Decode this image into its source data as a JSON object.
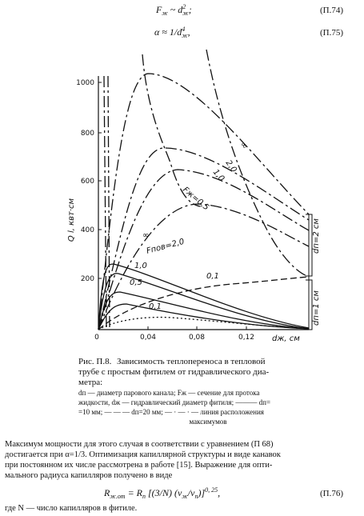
{
  "formulas": [
    {
      "parts": [
        "F",
        "ж",
        " ~ d",
        "2",
        "ж",
        ";"
      ],
      "number": "(П.74)"
    },
    {
      "parts": [
        "α ≈ 1/d",
        "4",
        "ж",
        ","
      ],
      "number": "(П.75)"
    },
    {
      "parts": [
        "R",
        "ж.от",
        " = R",
        "п",
        " [(3/N) (ν",
        "ж",
        "/ν",
        "п",
        ")]",
        "0, 25",
        ","
      ],
      "number": "(П.76)"
    }
  ],
  "figure": {
    "y_label": "Q l, квт·см",
    "x_label": "dж, см",
    "yticks": [
      "1000",
      "800",
      "600",
      "400",
      "200"
    ],
    "xticks": [
      "0",
      "0,04",
      "0,08",
      "0,12"
    ],
    "curve_labels": [
      "∞",
      "2,0",
      "1,0",
      "Fж=0,5",
      "∞",
      "Fпов=2,0",
      "1,0",
      "0,5",
      "0,1",
      "0,1"
    ],
    "bracket_labels": [
      "dп=2 см",
      "dп=1 см"
    ]
  },
  "caption": {
    "label": "Рис. П.8.",
    "lines": [
      "Зависимость теплопереноса в тепловой",
      "трубе с простым фитилем от гидравлического диа-",
      "метра:"
    ],
    "legend": [
      "dп — диаметр парового канала;  Fж — сечение для протока",
      "жидкости,  dж — гидравлический диаметр фитиля; ——— dп=",
      "=10 мм; — — — dп=20 мм; — · — · — линия расположения",
      "максимумов"
    ]
  },
  "body": [
    "Максимум мощности для этого случая в соответствии с уравнением (П 68)",
    "достигается при α=1/3. Оптимизация капиллярной структуры и виде канавок",
    "при постоянном их числе рассмотрена в работе [15]. Выражение для опти-",
    "мального радиуса капилляров получено в виде"
  ],
  "footer": "где N — число капилляров в фитиле."
}
